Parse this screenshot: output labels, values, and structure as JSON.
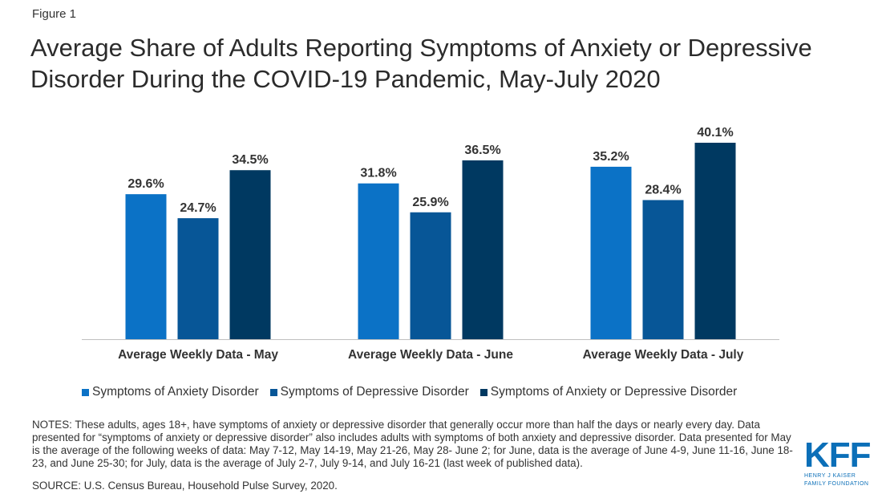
{
  "figure_label": "Figure 1",
  "chart_data": {
    "type": "bar",
    "title": "Average Share of Adults Reporting Symptoms of Anxiety or Depressive Disorder During the COVID-19 Pandemic, May-July 2020",
    "categories": [
      "Average Weekly Data - May",
      "Average Weekly Data - June",
      "Average Weekly Data - July"
    ],
    "series": [
      {
        "name": "Symptoms of Anxiety Disorder",
        "color": "#0b72c6",
        "values": [
          29.6,
          31.8,
          35.2
        ],
        "labels": [
          "29.6%",
          "31.8%",
          "35.2%"
        ]
      },
      {
        "name": "Symptoms of Depressive Disorder",
        "color": "#075697",
        "values": [
          24.7,
          25.9,
          28.4
        ],
        "labels": [
          "24.7%",
          "25.9%",
          "28.4%"
        ]
      },
      {
        "name": "Symptoms of Anxiety or Depressive Disorder",
        "color": "#003961",
        "values": [
          34.5,
          36.5,
          40.1
        ],
        "labels": [
          "34.5%",
          "36.5%",
          "40.1%"
        ]
      }
    ],
    "ylim": [
      0,
      40.1
    ],
    "grid": false,
    "legend_position": "bottom"
  },
  "notes": "NOTES: These adults, ages 18+, have symptoms of anxiety or depressive disorder that generally occur more than half the days or nearly every day. Data presented for “symptoms of anxiety or depressive disorder” also includes adults with symptoms of both anxiety and depressive disorder. Data presented for May is the average of the following weeks of data: May 7-12, May 14-19, May 21-26, May 28- June 2; for June, data is the average of June 4-9, June 11-16, June 18-23, and June 25-30; for July, data is the average of July 2-7, July 9-14, and July 16-21 (last week of published data).",
  "source": "SOURCE: U.S. Census Bureau, Household Pulse Survey, 2020.",
  "logo": {
    "letters": "KFF",
    "line1": "HENRY J KAISER",
    "line2": "FAMILY FOUNDATION",
    "color": "#0b6fb8"
  }
}
